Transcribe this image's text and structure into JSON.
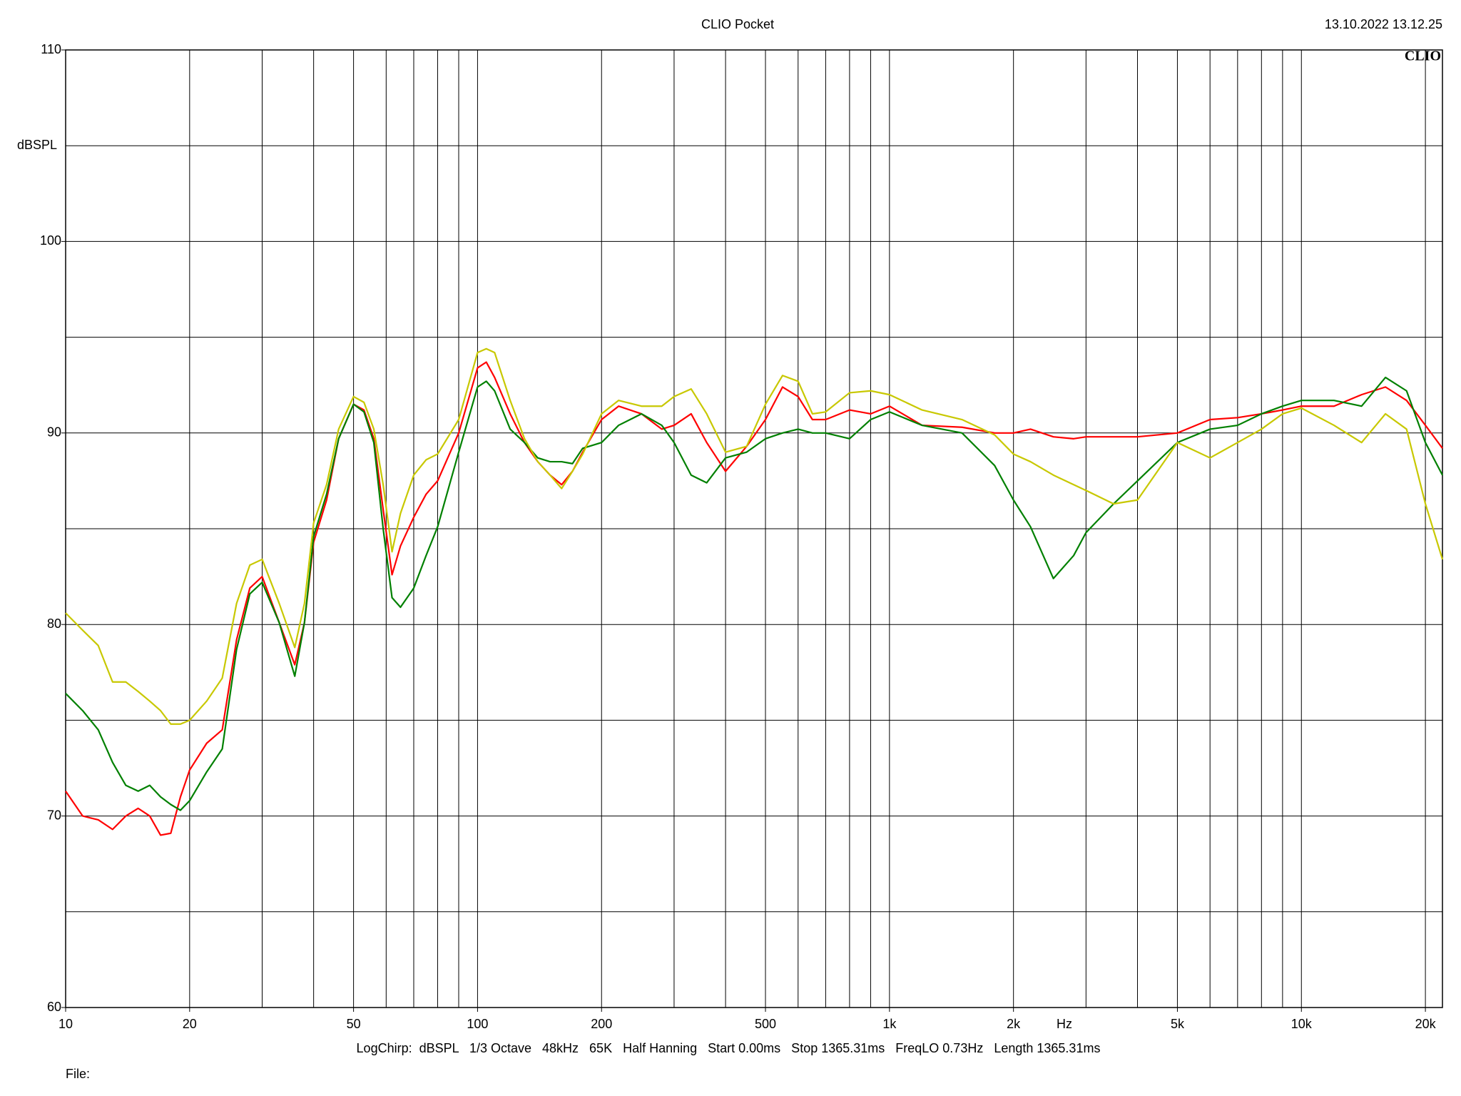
{
  "chart_data": {
    "type": "line",
    "title": "CLIO Pocket",
    "timestamp": "13.10.2022 13.12.25",
    "logo": "CLIO",
    "y_label": "dBSPL",
    "x_label": "Hz",
    "footer": "LogChirp:  dBSPL   1/3 Octave   48kHz   65K   Half Hanning   Start 0.00ms   Stop 1365.31ms   FreqLO 0.73Hz   Length 1365.31ms",
    "file_label": "File:",
    "log_x": true,
    "xlim": [
      10,
      22000
    ],
    "ylim": [
      60,
      110
    ],
    "xticks": [
      10,
      20,
      50,
      100,
      200,
      500,
      {
        "value": 1000,
        "label": "1k"
      },
      {
        "value": 2000,
        "label": "2k"
      },
      {
        "value": 5000,
        "label": "5k"
      },
      {
        "value": 10000,
        "label": "10k"
      },
      {
        "value": 20000,
        "label": "20k"
      }
    ],
    "xgrid": [
      10,
      20,
      30,
      40,
      50,
      60,
      70,
      80,
      90,
      100,
      200,
      300,
      400,
      500,
      600,
      700,
      800,
      900,
      1000,
      2000,
      3000,
      4000,
      5000,
      6000,
      7000,
      8000,
      9000,
      10000,
      20000
    ],
    "yticks": [
      60,
      70,
      80,
      90,
      100,
      110
    ],
    "ygrid": [
      60,
      65,
      70,
      75,
      80,
      85,
      90,
      95,
      100,
      105,
      110
    ],
    "x": [
      10,
      11,
      12,
      13,
      14,
      15,
      16,
      17,
      18,
      19,
      20,
      22,
      24,
      26,
      28,
      30,
      33,
      36,
      38,
      40,
      43,
      46,
      50,
      53,
      56,
      59,
      62,
      65,
      70,
      75,
      80,
      90,
      100,
      105,
      110,
      120,
      130,
      140,
      150,
      160,
      170,
      180,
      200,
      220,
      250,
      280,
      300,
      330,
      360,
      400,
      450,
      500,
      550,
      600,
      650,
      700,
      800,
      900,
      1000,
      1200,
      1500,
      1800,
      2000,
      2200,
      2500,
      2800,
      3000,
      3500,
      4000,
      5000,
      6000,
      7000,
      8000,
      9000,
      10000,
      12000,
      14000,
      16000,
      18000,
      20000,
      22000
    ],
    "series": [
      {
        "color": "#ff0000",
        "values": [
          71.3,
          70,
          69.8,
          69.3,
          70,
          70.4,
          70,
          69,
          69.1,
          71,
          72.4,
          73.8,
          74.5,
          79.2,
          81.9,
          82.5,
          80.1,
          77.9,
          80.1,
          84.3,
          86.5,
          89.7,
          91.5,
          91.2,
          89.7,
          86,
          82.6,
          84.1,
          85.6,
          86.8,
          87.5,
          90,
          93.4,
          93.7,
          92.9,
          91,
          89.5,
          88.5,
          87.8,
          87.3,
          88,
          89,
          90.7,
          91.4,
          91,
          90.2,
          90.4,
          91,
          89.5,
          88,
          89.3,
          90.7,
          92.4,
          91.9,
          90.7,
          90.7,
          91.2,
          91,
          91.4,
          90.4,
          90.3,
          90,
          90,
          90.2,
          89.8,
          89.7,
          89.8,
          89.8,
          89.8,
          90,
          90.7,
          90.8,
          91,
          91.2,
          91.4,
          91.4,
          92,
          92.4,
          91.7,
          90.4,
          89.2
        ]
      },
      {
        "color": "#008000",
        "values": [
          76.4,
          75.5,
          74.5,
          72.8,
          71.6,
          71.3,
          71.6,
          71,
          70.6,
          70.3,
          70.8,
          72.3,
          73.5,
          78.7,
          81.6,
          82.2,
          80.1,
          77.3,
          80.1,
          84.6,
          86.8,
          89.7,
          91.5,
          91.1,
          89.5,
          85,
          81.4,
          80.9,
          81.9,
          83.6,
          85.1,
          89,
          92.4,
          92.7,
          92.2,
          90.2,
          89.5,
          88.7,
          88.5,
          88.5,
          88.4,
          89.2,
          89.5,
          90.4,
          91,
          90.4,
          89.5,
          87.8,
          87.4,
          88.7,
          89,
          89.7,
          90,
          90.2,
          90,
          90,
          89.7,
          90.7,
          91.1,
          90.4,
          90,
          88.3,
          86.5,
          85.1,
          82.4,
          83.6,
          84.8,
          86.3,
          87.5,
          89.5,
          90.2,
          90.4,
          91,
          91.4,
          91.7,
          91.7,
          91.4,
          92.9,
          92.2,
          89.5,
          87.8
        ]
      },
      {
        "color": "#c8c800",
        "values": [
          80.6,
          79.7,
          78.9,
          77,
          77,
          76.5,
          76,
          75.5,
          74.8,
          74.8,
          75,
          76,
          77.2,
          81.1,
          83.1,
          83.4,
          81.1,
          78.8,
          81.1,
          85.3,
          87.3,
          90.2,
          91.9,
          91.6,
          90.2,
          87.3,
          83.8,
          85.8,
          87.8,
          88.6,
          88.9,
          90.7,
          94.2,
          94.4,
          94.2,
          91.7,
          89.7,
          88.5,
          87.8,
          87.1,
          88,
          88.9,
          91,
          91.7,
          91.4,
          91.4,
          91.9,
          92.3,
          91,
          89,
          89.3,
          91.5,
          93,
          92.7,
          91,
          91.1,
          92.1,
          92.2,
          92,
          91.2,
          90.7,
          89.9,
          88.9,
          88.5,
          87.8,
          87.3,
          87,
          86.3,
          86.5,
          89.5,
          88.7,
          89.5,
          90.2,
          91,
          91.3,
          90.4,
          89.5,
          91,
          90.2,
          86.3,
          83.4
        ]
      }
    ],
    "grid": true
  }
}
